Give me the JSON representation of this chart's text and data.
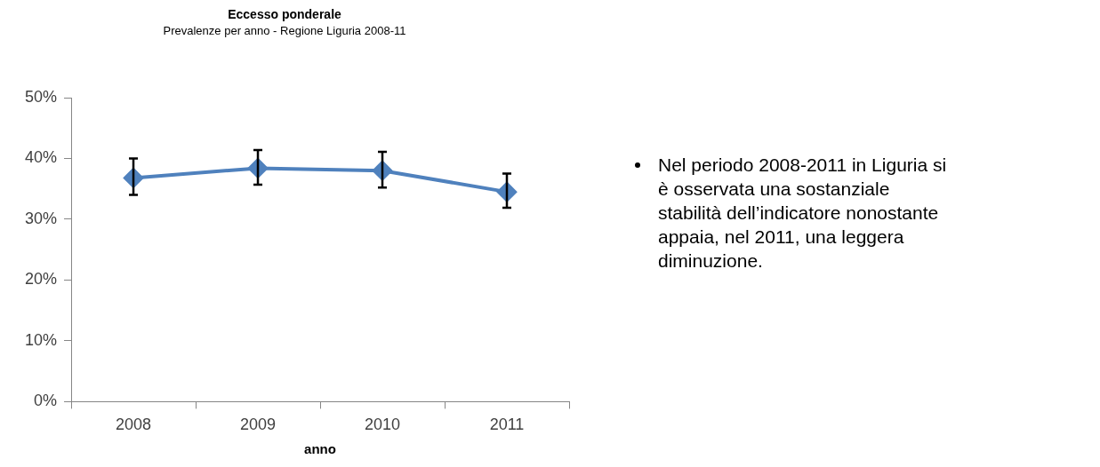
{
  "chart_data": {
    "type": "line",
    "title": "Eccesso ponderale",
    "subtitle": "Prevalenze per anno - Regione Liguria 2008-11",
    "xlabel": "anno",
    "categories": [
      "2008",
      "2009",
      "2010",
      "2011"
    ],
    "series": [
      {
        "color": "#4f81bd",
        "values": [
          36.8,
          38.4,
          38.0,
          34.5
        ],
        "errors": [
          [
            34.0,
            40.0
          ],
          [
            35.7,
            41.4
          ],
          [
            35.2,
            41.1
          ],
          [
            31.9,
            37.5
          ]
        ]
      }
    ],
    "ylim": [
      0,
      50
    ],
    "yticks": [
      {
        "value": 0,
        "label": "0%"
      },
      {
        "value": 10,
        "label": "10%"
      },
      {
        "value": 20,
        "label": "20%"
      },
      {
        "value": 30,
        "label": "30%"
      },
      {
        "value": 40,
        "label": "40%"
      },
      {
        "value": 50,
        "label": "50%"
      }
    ],
    "grid": false,
    "legend": false,
    "marker": "diamond",
    "line_style": "solid",
    "annotations": [
      "Nel periodo 2008-2011 in Liguria si è osservata una sostanziale stabilità dell’indicatore nonostante appaia, nel 2011, una leggera diminuzione."
    ]
  }
}
